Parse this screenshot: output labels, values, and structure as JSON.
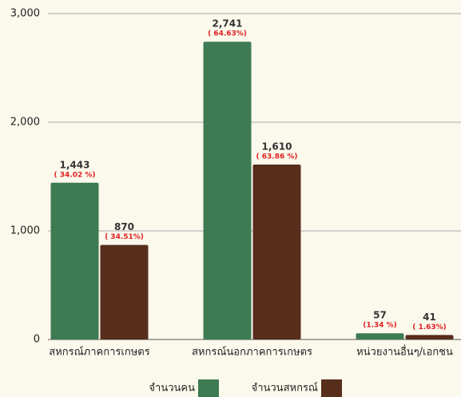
{
  "chart_data": {
    "type": "bar",
    "categories": [
      "สหกรณ์ภาคการเกษตร",
      "สหกรณ์นอกภาคการเกษตร",
      "หน่วยงานอื่นๆ/เอกชน"
    ],
    "series": [
      {
        "name": "จำนวนคน",
        "color": "#3d7b52",
        "values": [
          1443,
          2741,
          57
        ],
        "value_labels": [
          "1,443",
          "2,741",
          "57"
        ],
        "percent_labels": [
          "( 34.02 %)",
          "( 64.63%)",
          "(1.34 %)"
        ]
      },
      {
        "name": "จำนวนสหกรณ์",
        "color": "#572d1c",
        "values": [
          870,
          1610,
          41
        ],
        "value_labels": [
          "870",
          "1,610",
          "41"
        ],
        "percent_labels": [
          "( 34.51%)",
          "( 63.86 %)",
          "( 1.63%)"
        ]
      }
    ],
    "ylim": [
      0,
      3000
    ],
    "yticks": [
      0,
      {
        "value": 1000,
        "label": "1,000"
      },
      {
        "value": 2000,
        "label": "2,000"
      },
      {
        "value": 3000,
        "label": "3,000"
      }
    ],
    "grid": true,
    "legend": "bottom"
  }
}
